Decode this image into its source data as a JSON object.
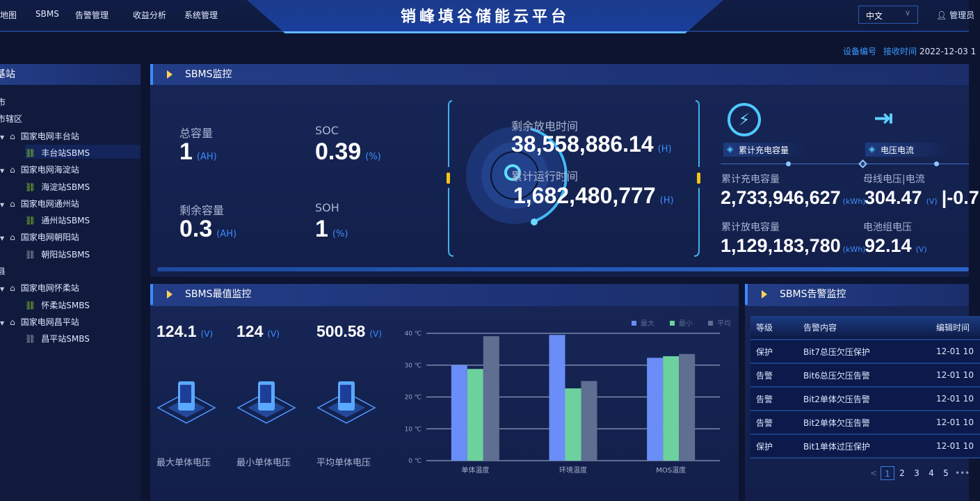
{
  "nav": {
    "items": [
      "地图",
      "SBMS",
      "告警管理",
      "收益分析",
      "系统管理"
    ],
    "title": "销峰填谷储能云平台",
    "language": "中文",
    "user": "管理员"
  },
  "info": {
    "device_label": "设备编号",
    "time_label": "接收时间",
    "time_value": "2022-12-03 1"
  },
  "tree": {
    "title": "基站",
    "items": [
      {
        "label": "市",
        "level": 0
      },
      {
        "label": "市辖区",
        "level": 0
      },
      {
        "label": "国家电网丰台站",
        "level": 1,
        "type": "station"
      },
      {
        "label": "丰台站SBMS",
        "level": 2,
        "type": "device",
        "online": true,
        "selected": true
      },
      {
        "label": "国家电网海淀站",
        "level": 1,
        "type": "station"
      },
      {
        "label": "海淀站SBMS",
        "level": 2,
        "type": "device",
        "online": true
      },
      {
        "label": "国家电网通州站",
        "level": 1,
        "type": "station"
      },
      {
        "label": "通州站SBMS",
        "level": 2,
        "type": "device",
        "online": true
      },
      {
        "label": "国家电网朝阳站",
        "level": 1,
        "type": "station"
      },
      {
        "label": "朝阳站SBMS",
        "level": 2,
        "type": "device",
        "online": false
      },
      {
        "label": "县",
        "level": 0
      },
      {
        "label": "国家电网怀柔站",
        "level": 1,
        "type": "station"
      },
      {
        "label": "怀柔站SMBS",
        "level": 2,
        "type": "device",
        "online": true
      },
      {
        "label": "国家电网昌平站",
        "level": 1,
        "type": "station"
      },
      {
        "label": "昌平站SMBS",
        "level": 2,
        "type": "device",
        "online": false
      }
    ]
  },
  "monitor": {
    "title": "SBMS监控",
    "total_cap": {
      "label": "总容量",
      "value": "1",
      "unit": "(AH)"
    },
    "soc": {
      "label": "SOC",
      "value": "0.39",
      "unit": "(%)"
    },
    "remain_cap": {
      "label": "剩余容量",
      "value": "0.3",
      "unit": "(AH)"
    },
    "soh": {
      "label": "SOH",
      "value": "1",
      "unit": "(%)"
    },
    "discharge_time": {
      "label": "剩余放电时间",
      "value": "38,558,886.14",
      "unit": "(H)"
    },
    "run_time": {
      "label": "累计运行时间",
      "value": "1,682,480,777",
      "unit": "(H)"
    },
    "tab1": "累计充电容量",
    "tab2": "电压电流",
    "charge": {
      "label": "累计充电容量",
      "value": "2,733,946,627",
      "unit": "(kWh)"
    },
    "discharge": {
      "label": "累计放电容量",
      "value": "1,129,183,780",
      "unit": "(kWh)"
    },
    "bus": {
      "label": "母线电压|电流",
      "value": "304.47",
      "unit": "(V)",
      "current": "|-0.7"
    },
    "pack": {
      "label": "电池组电压",
      "value": "92.14",
      "unit": "(V)"
    }
  },
  "extreme": {
    "title": "SBMS最值监控",
    "cards": [
      {
        "value": "124.1",
        "unit": "(V)",
        "label": "最大单体电压"
      },
      {
        "value": "124",
        "unit": "(V)",
        "label": "最小单体电压"
      },
      {
        "value": "500.58",
        "unit": "(V)",
        "label": "平均单体电压"
      }
    ]
  },
  "chart_data": {
    "type": "bar",
    "categories": [
      "单体温度",
      "环境温度",
      "MOS温度"
    ],
    "series": [
      {
        "name": "最大",
        "values": [
          30,
          39.5,
          32.3
        ],
        "color": "#6a8df7"
      },
      {
        "name": "最小",
        "values": [
          28.8,
          22.7,
          32.8
        ],
        "color": "#6dd19e"
      },
      {
        "name": "平均",
        "values": [
          39.1,
          25,
          33.5
        ],
        "color": "#5f6f91"
      }
    ],
    "yticks": [
      "0 ℃",
      "10 ℃",
      "20 ℃",
      "30 ℃",
      "40 ℃"
    ],
    "ylim": [
      0,
      40
    ],
    "grid": true,
    "legend": "top-right"
  },
  "alarm": {
    "title": "SBMS告警监控",
    "columns": [
      "等级",
      "告警内容",
      "编辑时间"
    ],
    "rows": [
      [
        "保护",
        "Bit7总压欠压保护",
        "12-01 10"
      ],
      [
        "告警",
        "Bit6总压欠压告警",
        "12-01 10"
      ],
      [
        "告警",
        "Bit2单体欠压告警",
        "12-01 10"
      ],
      [
        "告警",
        "Bit2单体欠压告警",
        "12-01 10"
      ],
      [
        "保护",
        "Bit1单体过压保护",
        "12-01 10"
      ]
    ],
    "pages": [
      "1",
      "2",
      "3",
      "4",
      "5"
    ],
    "current_page": "1",
    "prev": "<",
    "more": "•••"
  }
}
